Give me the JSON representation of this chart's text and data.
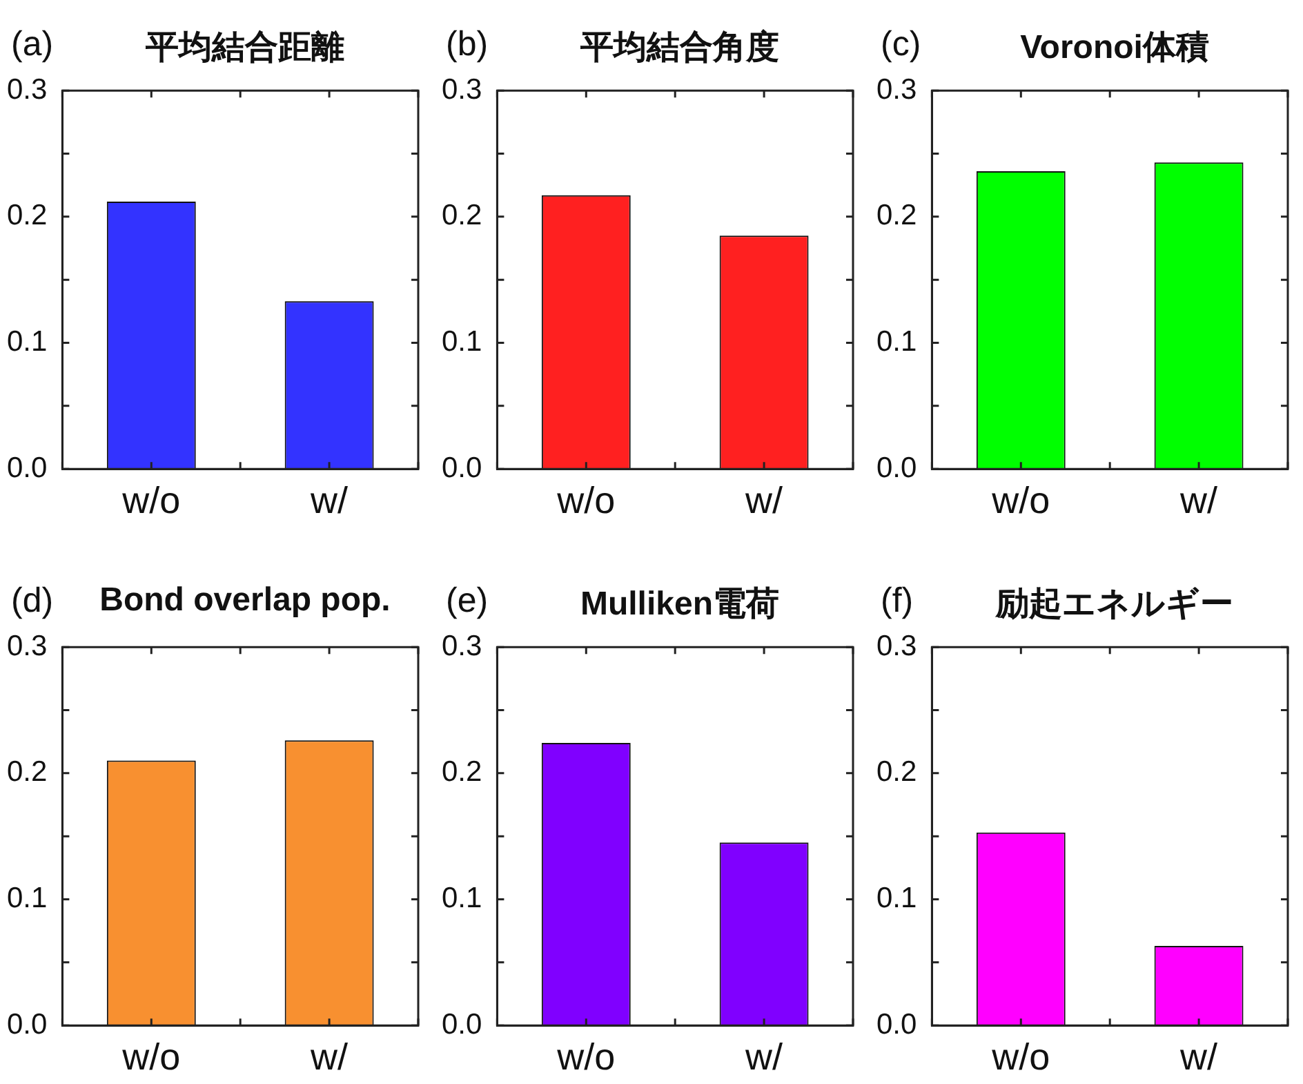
{
  "chart_data": [
    {
      "type": "bar",
      "title": "平均結合距離",
      "annotations": [
        "(a)"
      ],
      "categories": [
        "w/o",
        "w/"
      ],
      "values": [
        0.212,
        0.133
      ],
      "color": "#3333ff",
      "ylim": [
        0,
        0.3
      ],
      "yticks": [
        {
          "value": 0,
          "label": "0.0"
        },
        {
          "value": 0.05,
          "label": null
        },
        0.1,
        {
          "value": 0.15,
          "label": null
        },
        0.2,
        {
          "value": 0.25,
          "label": null
        },
        0.3
      ]
    },
    {
      "type": "bar",
      "title": "平均結合角度",
      "annotations": [
        "(b)"
      ],
      "categories": [
        "w/o",
        "w/"
      ],
      "values": [
        0.217,
        0.185
      ],
      "color": "#ff2020",
      "ylim": [
        0,
        0.3
      ],
      "yticks": [
        {
          "value": 0,
          "label": "0.0"
        },
        {
          "value": 0.05,
          "label": null
        },
        0.1,
        {
          "value": 0.15,
          "label": null
        },
        0.2,
        {
          "value": 0.25,
          "label": null
        },
        0.3
      ]
    },
    {
      "type": "bar",
      "title": "Voronoi体積",
      "annotations": [
        "(c)"
      ],
      "categories": [
        "w/o",
        "w/"
      ],
      "values": [
        0.236,
        0.243
      ],
      "color": "#00ff00",
      "ylim": [
        0,
        0.3
      ],
      "yticks": [
        {
          "value": 0,
          "label": "0.0"
        },
        {
          "value": 0.05,
          "label": null
        },
        0.1,
        {
          "value": 0.15,
          "label": null
        },
        0.2,
        {
          "value": 0.25,
          "label": null
        },
        0.3
      ]
    },
    {
      "type": "bar",
      "title": "Bond overlap pop.",
      "annotations": [
        "(d)"
      ],
      "categories": [
        "w/o",
        "w/"
      ],
      "values": [
        0.21,
        0.226
      ],
      "color": "#f89030",
      "ylim": [
        0,
        0.3
      ],
      "yticks": [
        {
          "value": 0,
          "label": "0.0"
        },
        {
          "value": 0.05,
          "label": null
        },
        0.1,
        {
          "value": 0.15,
          "label": null
        },
        0.2,
        {
          "value": 0.25,
          "label": null
        },
        0.3
      ]
    },
    {
      "type": "bar",
      "title": "Mulliken電荷",
      "annotations": [
        "(e)"
      ],
      "categories": [
        "w/o",
        "w/"
      ],
      "values": [
        0.224,
        0.145
      ],
      "color": "#8000ff",
      "ylim": [
        0,
        0.3
      ],
      "yticks": [
        {
          "value": 0,
          "label": "0.0"
        },
        {
          "value": 0.05,
          "label": null
        },
        0.1,
        {
          "value": 0.15,
          "label": null
        },
        0.2,
        {
          "value": 0.25,
          "label": null
        },
        0.3
      ]
    },
    {
      "type": "bar",
      "title": "励起エネルギー",
      "annotations": [
        "(f)"
      ],
      "categories": [
        "w/o",
        "w/"
      ],
      "values": [
        0.153,
        0.063
      ],
      "color": "#ff00ff",
      "ylim": [
        0,
        0.3
      ],
      "yticks": [
        {
          "value": 0,
          "label": "0.0"
        },
        {
          "value": 0.05,
          "label": null
        },
        0.1,
        {
          "value": 0.15,
          "label": null
        },
        0.2,
        {
          "value": 0.25,
          "label": null
        },
        0.3
      ]
    }
  ]
}
